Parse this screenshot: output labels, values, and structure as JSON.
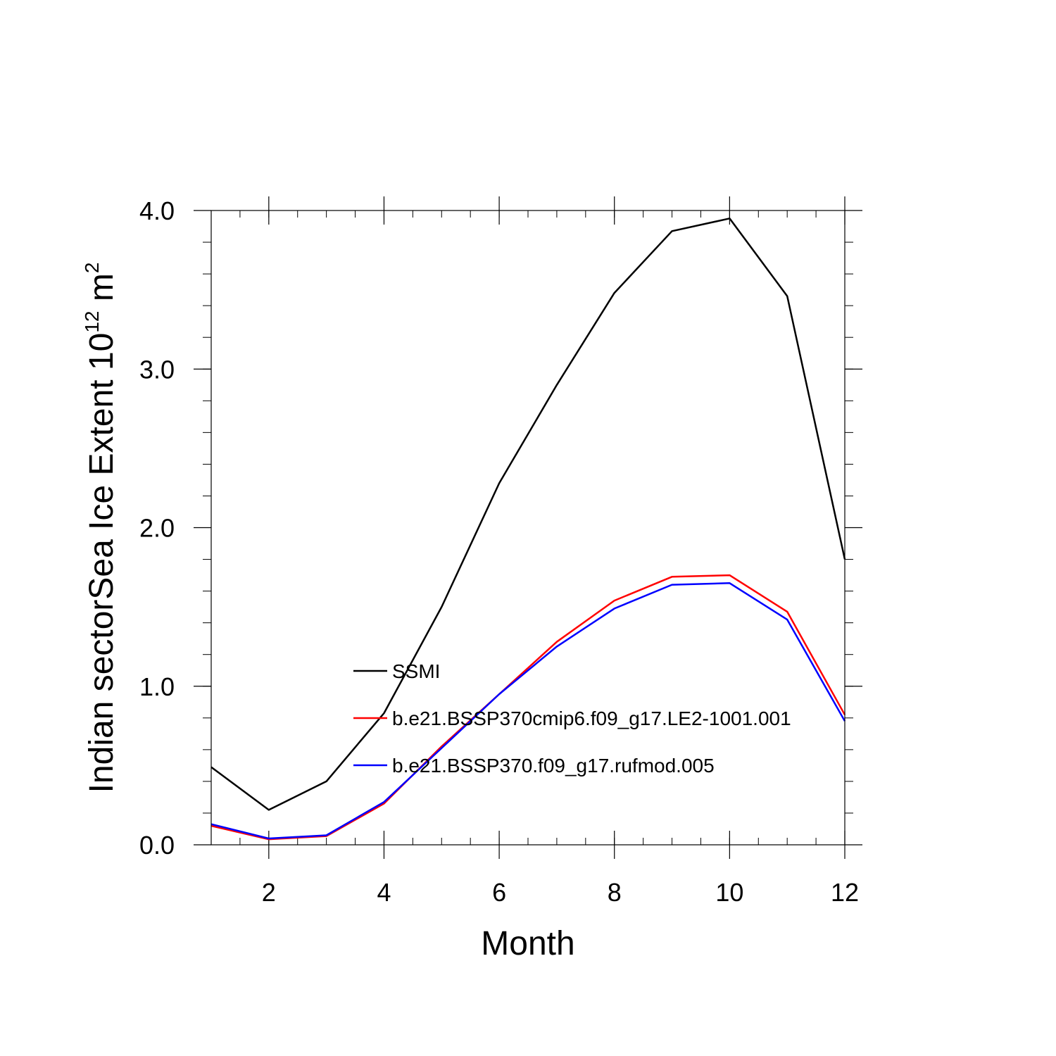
{
  "chart_data": {
    "type": "line",
    "xlabel": "Month",
    "ylabel": {
      "main": "Indian sectorSea Ice Extent 10",
      "superscript": "12",
      "unit": " m",
      "unit_superscript": "2"
    },
    "xlim": [
      1,
      12
    ],
    "ylim": [
      0,
      4
    ],
    "x_ticks": [
      2,
      4,
      6,
      8,
      10,
      12
    ],
    "x_tick_labels": [
      "2",
      "4",
      "6",
      "8",
      "10",
      "12"
    ],
    "y_ticks": [
      0,
      1,
      2,
      3,
      4
    ],
    "y_tick_labels": [
      "0.0",
      "1.0",
      "2.0",
      "3.0",
      "4.0"
    ],
    "x": [
      1,
      2,
      3,
      4,
      5,
      6,
      7,
      8,
      9,
      10,
      11,
      12
    ],
    "series": [
      {
        "name": "SSMI",
        "color": "#000000",
        "values": [
          0.49,
          0.22,
          0.4,
          0.83,
          1.5,
          2.28,
          2.9,
          3.48,
          3.87,
          3.95,
          3.46,
          1.8
        ]
      },
      {
        "name": "b.e21.BSSP370cmip6.f09_g17.LE2-1001.001",
        "color": "#ff0000",
        "values": [
          0.12,
          0.035,
          0.055,
          0.26,
          0.62,
          0.95,
          1.28,
          1.54,
          1.69,
          1.7,
          1.47,
          0.82
        ]
      },
      {
        "name": "b.e21.BSSP370.f09_g17.rufmod.005",
        "color": "#0000ff",
        "values": [
          0.13,
          0.04,
          0.06,
          0.27,
          0.61,
          0.95,
          1.25,
          1.49,
          1.64,
          1.65,
          1.42,
          0.78
        ]
      }
    ],
    "legend_position": "inside, lower-center",
    "grid": false
  }
}
